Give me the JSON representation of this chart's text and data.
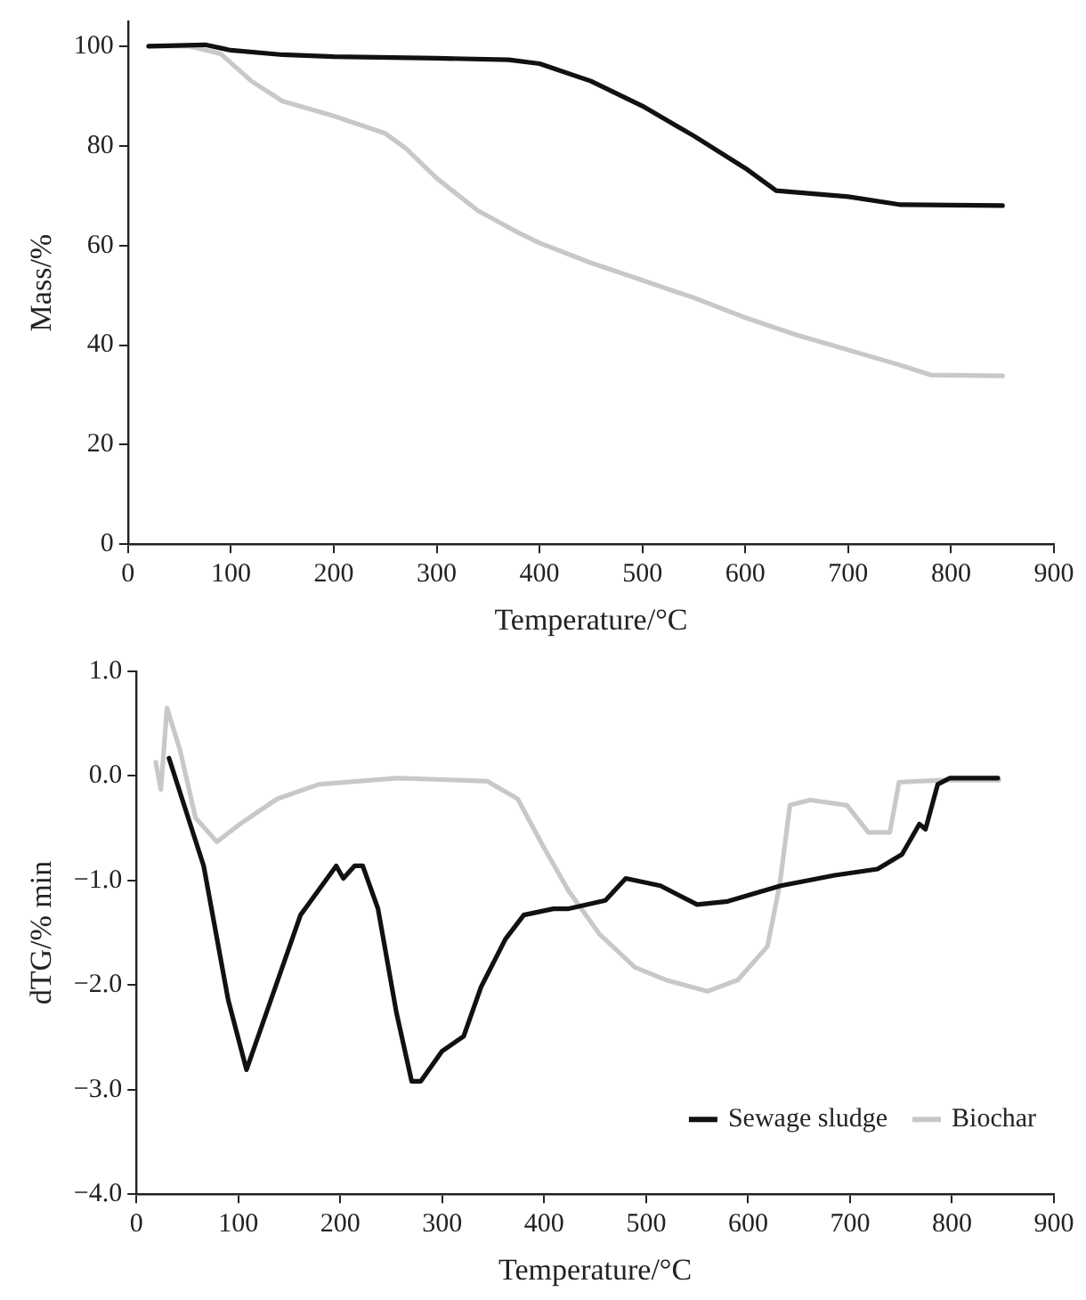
{
  "chart_data": [
    {
      "type": "line",
      "xlabel": "Temperature/°C",
      "ylabel": "Mass/%",
      "xlim": [
        0,
        900
      ],
      "xticks": [
        0,
        100,
        200,
        300,
        400,
        500,
        600,
        700,
        800,
        900
      ],
      "ylim": [
        0,
        105
      ],
      "yticks": [
        0,
        20,
        40,
        60,
        80,
        100
      ],
      "grid": false,
      "marker": "none",
      "line_style": "solid",
      "series": [
        {
          "color": "#111111",
          "x": [
            20,
            75,
            100,
            150,
            200,
            300,
            370,
            400,
            450,
            500,
            550,
            600,
            630,
            700,
            750,
            800,
            850
          ],
          "values": [
            100,
            100.3,
            99.2,
            98.3,
            97.9,
            97.6,
            97.3,
            96.5,
            93,
            88,
            82,
            75.5,
            71,
            69.8,
            68.2,
            68.1,
            68
          ]
        },
        {
          "color": "#c8c8c8",
          "x": [
            20,
            60,
            90,
            120,
            150,
            200,
            250,
            270,
            300,
            340,
            380,
            400,
            450,
            500,
            550,
            600,
            650,
            700,
            750,
            780,
            850
          ],
          "values": [
            100,
            100,
            98.5,
            93,
            89,
            86,
            82.5,
            79.5,
            73.5,
            67,
            62.5,
            60.5,
            56.5,
            53,
            49.5,
            45.5,
            42,
            39,
            36,
            34,
            33.8
          ]
        }
      ]
    },
    {
      "type": "line",
      "xlabel": "Temperature/°C",
      "ylabel": "dTG/% min",
      "xlim": [
        0,
        900
      ],
      "xticks": [
        0,
        100,
        200,
        300,
        400,
        500,
        600,
        700,
        800,
        900
      ],
      "ylim": [
        -4,
        1
      ],
      "yticks": [
        {
          "value": -4,
          "label": "−4.0"
        },
        {
          "value": -3,
          "label": "−3.0"
        },
        {
          "value": -2,
          "label": "−2.0"
        },
        {
          "value": -1,
          "label": "−1.0"
        },
        {
          "value": 0,
          "label": "0.0"
        },
        {
          "value": 1,
          "label": "1.0"
        }
      ],
      "grid": false,
      "marker": "none",
      "line_style": "solid",
      "legend": "bottom right",
      "series": [
        {
          "name": "Sewage sludge",
          "color": "#111111",
          "x": [
            32,
            66,
            90,
            108,
            132,
            161,
            196,
            203,
            214,
            222,
            237,
            255,
            270,
            279,
            300,
            321,
            338,
            362,
            380,
            409,
            424,
            460,
            480,
            514,
            550,
            580,
            632,
            685,
            727,
            751,
            768,
            774,
            786,
            798,
            845
          ],
          "values": [
            0.17,
            -0.86,
            -2.14,
            -2.81,
            -2.14,
            -1.33,
            -0.86,
            -0.98,
            -0.86,
            -0.86,
            -1.27,
            -2.26,
            -2.92,
            -2.92,
            -2.63,
            -2.49,
            -2.02,
            -1.56,
            -1.33,
            -1.27,
            -1.27,
            -1.19,
            -0.98,
            -1.05,
            -1.23,
            -1.2,
            -1.05,
            -0.95,
            -0.89,
            -0.75,
            -0.46,
            -0.51,
            -0.08,
            -0.02,
            -0.02
          ]
        },
        {
          "name": "Biochar",
          "color": "#c8c8c8",
          "x": [
            19,
            24,
            30,
            43,
            58,
            79,
            103,
            138,
            179,
            256,
            344,
            374,
            400,
            424,
            454,
            489,
            519,
            560,
            590,
            619,
            631,
            641,
            661,
            697,
            718,
            739,
            748,
            792,
            846
          ],
          "values": [
            0.13,
            -0.13,
            0.65,
            0.24,
            -0.4,
            -0.63,
            -0.45,
            -0.22,
            -0.08,
            -0.02,
            -0.05,
            -0.22,
            -0.69,
            -1.1,
            -1.51,
            -1.83,
            -1.95,
            -2.06,
            -1.95,
            -1.63,
            -1.04,
            -0.28,
            -0.23,
            -0.28,
            -0.54,
            -0.54,
            -0.06,
            -0.04,
            -0.04
          ]
        }
      ]
    }
  ]
}
